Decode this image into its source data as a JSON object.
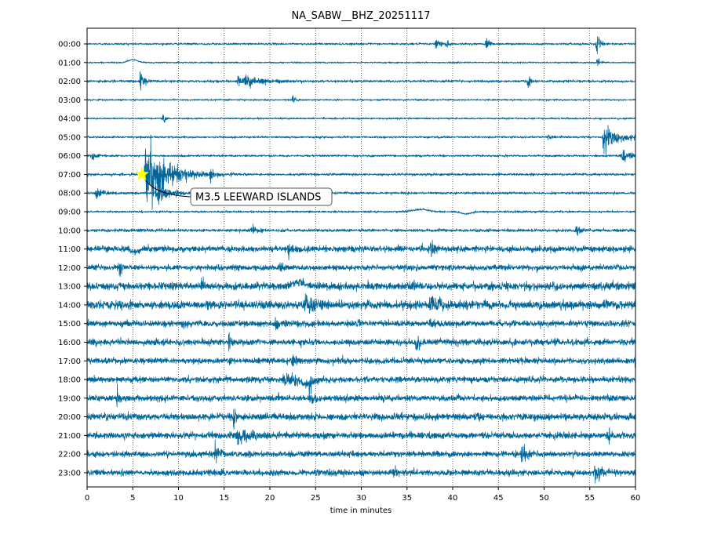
{
  "chart_data": {
    "type": "line",
    "title": "NA_SABW__BHZ_20251117",
    "xlabel": "time in minutes",
    "ylabel": "",
    "xlim": [
      0,
      60
    ],
    "x_ticks": [
      0,
      5,
      10,
      15,
      20,
      25,
      30,
      35,
      40,
      45,
      50,
      55,
      60
    ],
    "grid": "vertical dotted lines at each x tick",
    "trace_color": "#006699",
    "rows": [
      {
        "label": "00:00",
        "noise": 0.3,
        "events": [
          {
            "t": 38.2,
            "amp": 3.0,
            "dur": 0.4
          },
          {
            "t": 39.3,
            "amp": 2.0,
            "dur": 0.3
          },
          {
            "t": 43.7,
            "amp": 4.0,
            "dur": 0.3
          },
          {
            "t": 55.8,
            "amp": 3.5,
            "dur": 0.4
          }
        ]
      },
      {
        "label": "01:00",
        "noise": 0.22,
        "bumps": [
          {
            "t": 5.0,
            "amp": 1.8,
            "w": 0.7
          }
        ],
        "events": [
          {
            "t": 55.8,
            "amp": 2.5,
            "dur": 0.3
          }
        ]
      },
      {
        "label": "02:00",
        "noise": 0.35,
        "events": [
          {
            "t": 5.8,
            "amp": 4.0,
            "dur": 0.4
          },
          {
            "t": 16.5,
            "amp": 2.0,
            "dur": 3.0
          },
          {
            "t": 48.2,
            "amp": 3.5,
            "dur": 0.3
          }
        ]
      },
      {
        "label": "03:00",
        "noise": 0.25,
        "events": [
          {
            "t": 22.5,
            "amp": 2.0,
            "dur": 0.3
          }
        ]
      },
      {
        "label": "04:00",
        "noise": 0.25,
        "events": [
          {
            "t": 8.3,
            "amp": 2.0,
            "dur": 0.3
          }
        ]
      },
      {
        "label": "05:00",
        "noise": 0.3,
        "events": [
          {
            "t": 50.5,
            "amp": 1.5,
            "dur": 0.3
          },
          {
            "t": 56.5,
            "amp": 4.5,
            "dur": 1.8
          }
        ]
      },
      {
        "label": "06:00",
        "noise": 0.3,
        "events": [
          {
            "t": 0.5,
            "amp": 2.0,
            "dur": 0.5
          },
          {
            "t": 58.5,
            "amp": 3.0,
            "dur": 0.8
          }
        ]
      },
      {
        "label": "07:00",
        "noise": 0.35,
        "events": [
          {
            "t": 6.4,
            "amp": 11.0,
            "dur": 2.5
          },
          {
            "t": 13.5,
            "amp": 3.0,
            "dur": 0.3
          }
        ]
      },
      {
        "label": "08:00",
        "noise": 0.35,
        "events": [
          {
            "t": 1.0,
            "amp": 2.0,
            "dur": 1.0
          },
          {
            "t": 7.5,
            "amp": 4.0,
            "dur": 1.5
          }
        ]
      },
      {
        "label": "09:00",
        "noise": 0.3,
        "bumps": [
          {
            "t": 36.5,
            "amp": 1.5,
            "w": 1.2
          },
          {
            "t": 41.5,
            "amp": -1.5,
            "w": 0.7
          }
        ]
      },
      {
        "label": "10:00",
        "noise": 0.45,
        "events": [
          {
            "t": 18.0,
            "amp": 1.8,
            "dur": 0.8
          },
          {
            "t": 53.5,
            "amp": 2.5,
            "dur": 0.6
          }
        ]
      },
      {
        "label": "11:00",
        "noise": 0.9,
        "bumps": [
          {
            "t": 5.3,
            "amp": -1.8,
            "w": 0.6
          }
        ],
        "events": [
          {
            "t": 22.0,
            "amp": 3.0,
            "dur": 0.5
          },
          {
            "t": 37.5,
            "amp": 4.0,
            "dur": 0.5
          }
        ]
      },
      {
        "label": "12:00",
        "noise": 0.8,
        "events": [
          {
            "t": 3.5,
            "amp": 3.0,
            "dur": 0.4
          },
          {
            "t": 21.0,
            "amp": 2.5,
            "dur": 0.5
          }
        ]
      },
      {
        "label": "13:00",
        "noise": 1.1,
        "bumps": [
          {
            "t": 23.0,
            "amp": 2.5,
            "w": 1.0
          }
        ],
        "events": [
          {
            "t": 12.5,
            "amp": 3.5,
            "dur": 0.4
          },
          {
            "t": 35.5,
            "amp": 3.0,
            "dur": 0.4
          }
        ]
      },
      {
        "label": "14:00",
        "noise": 1.2,
        "events": [
          {
            "t": 23.8,
            "amp": 4.0,
            "dur": 1.5
          },
          {
            "t": 37.5,
            "amp": 3.5,
            "dur": 1.5
          }
        ]
      },
      {
        "label": "15:00",
        "noise": 0.9,
        "events": [
          {
            "t": 20.5,
            "amp": 2.0,
            "dur": 1.2
          },
          {
            "t": 37.5,
            "amp": 2.5,
            "dur": 0.6
          }
        ]
      },
      {
        "label": "16:00",
        "noise": 0.9,
        "events": [
          {
            "t": 15.5,
            "amp": 3.5,
            "dur": 0.3
          },
          {
            "t": 36.0,
            "amp": 4.0,
            "dur": 0.3
          }
        ]
      },
      {
        "label": "17:00",
        "noise": 0.85,
        "events": [
          {
            "t": 22.5,
            "amp": 3.5,
            "dur": 0.4
          },
          {
            "t": 60.0,
            "amp": 4.0,
            "dur": 0.3
          }
        ]
      },
      {
        "label": "18:00",
        "noise": 0.9,
        "bumps": [
          {
            "t": 24.0,
            "amp": -2.5,
            "w": 1.0
          }
        ],
        "events": [
          {
            "t": 21.5,
            "amp": 3.0,
            "dur": 1.5
          },
          {
            "t": 24.3,
            "amp": 3.5,
            "dur": 0.5
          }
        ]
      },
      {
        "label": "19:00",
        "noise": 0.9,
        "events": [
          {
            "t": 3.3,
            "amp": 4.0,
            "dur": 0.3
          },
          {
            "t": 24.5,
            "amp": 3.0,
            "dur": 0.5
          }
        ]
      },
      {
        "label": "20:00",
        "noise": 1.0,
        "events": [
          {
            "t": 16.0,
            "amp": 2.5,
            "dur": 0.5
          },
          {
            "t": 42.5,
            "amp": 2.5,
            "dur": 0.5
          }
        ]
      },
      {
        "label": "21:00",
        "noise": 0.95,
        "events": [
          {
            "t": 16.5,
            "amp": 3.0,
            "dur": 1.5
          },
          {
            "t": 57.0,
            "amp": 3.5,
            "dur": 0.3
          }
        ]
      },
      {
        "label": "22:00",
        "noise": 0.85,
        "bumps": [
          {
            "t": 14.5,
            "amp": 1.2,
            "w": 0.5
          }
        ],
        "events": [
          {
            "t": 14.0,
            "amp": 4.0,
            "dur": 0.3
          },
          {
            "t": 47.5,
            "amp": 3.5,
            "dur": 0.8
          }
        ]
      },
      {
        "label": "23:00",
        "noise": 0.85,
        "events": [
          {
            "t": 33.5,
            "amp": 2.5,
            "dur": 0.5
          },
          {
            "t": 55.5,
            "amp": 3.5,
            "dur": 1.0
          }
        ]
      }
    ],
    "annotations": [
      {
        "text": "M3.5 LEEWARD ISLANDS",
        "row": "07:00",
        "t": 6.0,
        "marker": "star",
        "marker_color": "#ffff00"
      }
    ]
  }
}
